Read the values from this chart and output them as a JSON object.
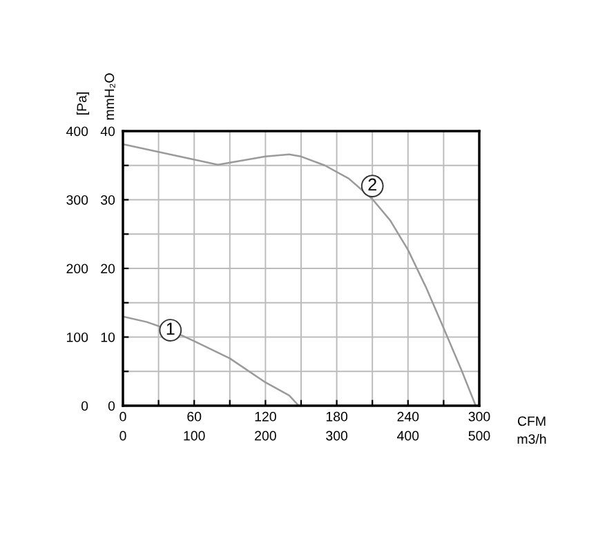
{
  "chart_data": {
    "type": "line",
    "xlabel": "CFM",
    "x2label": "m3/h",
    "ylabel": "[Pa]",
    "y2label": "mmH₂O",
    "xlim": [
      0,
      300
    ],
    "xticks": [
      0,
      {
        "value": 30,
        "label": null
      },
      60,
      {
        "value": 90,
        "label": null
      },
      120,
      {
        "value": 150,
        "label": null
      },
      180,
      {
        "value": 210,
        "label": null
      },
      240,
      {
        "value": 270,
        "label": null
      },
      300
    ],
    "x2lim": [
      0,
      500
    ],
    "x2ticks": [
      0,
      100,
      200,
      300,
      400,
      500
    ],
    "ylim": [
      0,
      400
    ],
    "yticks": [
      0,
      {
        "value": 50,
        "label": null
      },
      100,
      {
        "value": 150,
        "label": null
      },
      200,
      {
        "value": 250,
        "label": null
      },
      300,
      {
        "value": 350,
        "label": null
      },
      400
    ],
    "y2lim": [
      0,
      40
    ],
    "y2ticks": [
      0,
      10,
      20,
      30,
      40
    ],
    "grid": true,
    "marker": "none",
    "line_style": "solid",
    "series": [
      {
        "color": "#9a9a9a",
        "x": [
          0,
          20,
          40,
          60,
          90,
          120,
          140,
          148
        ],
        "values": [
          130,
          122,
          110,
          94,
          69,
          34,
          15,
          0
        ]
      },
      {
        "color": "#9a9a9a",
        "x": [
          0,
          45,
          80,
          90,
          120,
          140,
          150,
          170,
          190,
          210,
          225,
          240,
          255,
          270,
          285,
          297
        ],
        "values": [
          381,
          364,
          351,
          354,
          363,
          366,
          363,
          350,
          331,
          301,
          270,
          227,
          173,
          113,
          52,
          0
        ]
      }
    ],
    "annotations": [
      {
        "text": "1",
        "x": 40,
        "y": 110
      },
      {
        "text": "2",
        "x": 210,
        "y": 320
      }
    ]
  }
}
